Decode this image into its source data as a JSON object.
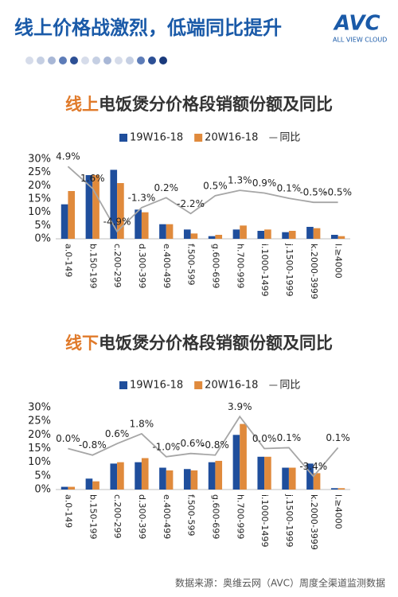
{
  "header": {
    "title": "线上价格战激烈，低端同比提升",
    "logo": "AVC",
    "logo_sub": "ALL VIEW CLOUD"
  },
  "footer": "数据来源：奥维云网（AVC）周度全渠道监测数据",
  "chart_data": [
    {
      "type": "bar",
      "title_parts": [
        "线上",
        "电饭煲分价格段销额份额及同比"
      ],
      "categories": [
        "a.0-149",
        "b.150-199",
        "c.200-299",
        "d.300-399",
        "e.400-499",
        "f.500-599",
        "g.600-699",
        "h.700-999",
        "i.1000-1499",
        "j.1500-1999",
        "k.2000-3999",
        "l.≥4000"
      ],
      "series": [
        {
          "name": "19W16-18",
          "color": "#1f4e9c",
          "values": [
            13,
            24,
            26,
            11,
            5.5,
            3.5,
            1,
            3.5,
            3,
            2.5,
            4.5,
            1.5
          ]
        },
        {
          "name": "20W16-18",
          "color": "#e08a3c",
          "values": [
            18,
            24,
            21,
            10,
            5.5,
            2,
            1.5,
            5,
            3.5,
            3,
            4,
            1
          ]
        },
        {
          "name": "同比",
          "type": "line",
          "axis": "y2",
          "color": "#a6a6a6",
          "values": [
            4.9,
            1.6,
            -4.9,
            -1.3,
            0.2,
            -2.2,
            0.5,
            1.3,
            0.9,
            0.1,
            -0.5,
            -0.5
          ],
          "value_labels": [
            "4.9%",
            "1.6%",
            "-4.9%",
            "-1.3%",
            "0.2%",
            "-2.2%",
            "0.5%",
            "1.3%",
            "0.9%",
            "0.1%",
            "-0.5%",
            "-0.5%"
          ]
        }
      ],
      "ylim": [
        0,
        30
      ],
      "yticks": [
        {
          "value": 0,
          "label": "0%"
        },
        {
          "value": 5,
          "label": "5%"
        },
        {
          "value": 10,
          "label": "10%"
        },
        {
          "value": 15,
          "label": "15%"
        },
        {
          "value": 20,
          "label": "20%"
        },
        {
          "value": 25,
          "label": "25%"
        },
        {
          "value": 30,
          "label": "30%"
        }
      ],
      "y2lim": [
        -6,
        6
      ]
    },
    {
      "type": "bar",
      "title_parts": [
        "线下",
        "电饭煲分价格段销额份额及同比"
      ],
      "categories": [
        "a.0-149",
        "b.150-199",
        "c.200-299",
        "d.300-399",
        "e.400-499",
        "f.500-599",
        "g.600-699",
        "h.700-999",
        "i.1000-1499",
        "j.1500-1999",
        "k.2000-3999",
        "l.≥4000"
      ],
      "series": [
        {
          "name": "19W16-18",
          "color": "#1f4e9c",
          "values": [
            1,
            4,
            9.5,
            10,
            8,
            7.5,
            10,
            20,
            12,
            8,
            9.5,
            0.5
          ]
        },
        {
          "name": "20W16-18",
          "color": "#e08a3c",
          "values": [
            1,
            3,
            10,
            11.5,
            7,
            7,
            10.5,
            24,
            12,
            8,
            6,
            0.5
          ]
        },
        {
          "name": "同比",
          "type": "line",
          "axis": "y2",
          "color": "#a6a6a6",
          "values": [
            0.0,
            -0.8,
            0.6,
            1.8,
            -1.0,
            -0.6,
            -0.8,
            3.9,
            0.0,
            0.1,
            -3.4,
            0.1
          ],
          "value_labels": [
            "0.0%",
            "-0.8%",
            "0.6%",
            "1.8%",
            "-1.0%",
            "-0.6%",
            "-0.8%",
            "3.9%",
            "0.0%",
            "0.1%",
            "-3.4%",
            "0.1%"
          ]
        }
      ],
      "ylim": [
        0,
        30
      ],
      "yticks": [
        {
          "value": 0,
          "label": "0%"
        },
        {
          "value": 5,
          "label": "5%"
        },
        {
          "value": 10,
          "label": "10%"
        },
        {
          "value": 15,
          "label": "15%"
        },
        {
          "value": 20,
          "label": "20%"
        },
        {
          "value": 25,
          "label": "25%"
        },
        {
          "value": 30,
          "label": "30%"
        }
      ],
      "y2lim": [
        -5,
        5
      ]
    }
  ]
}
